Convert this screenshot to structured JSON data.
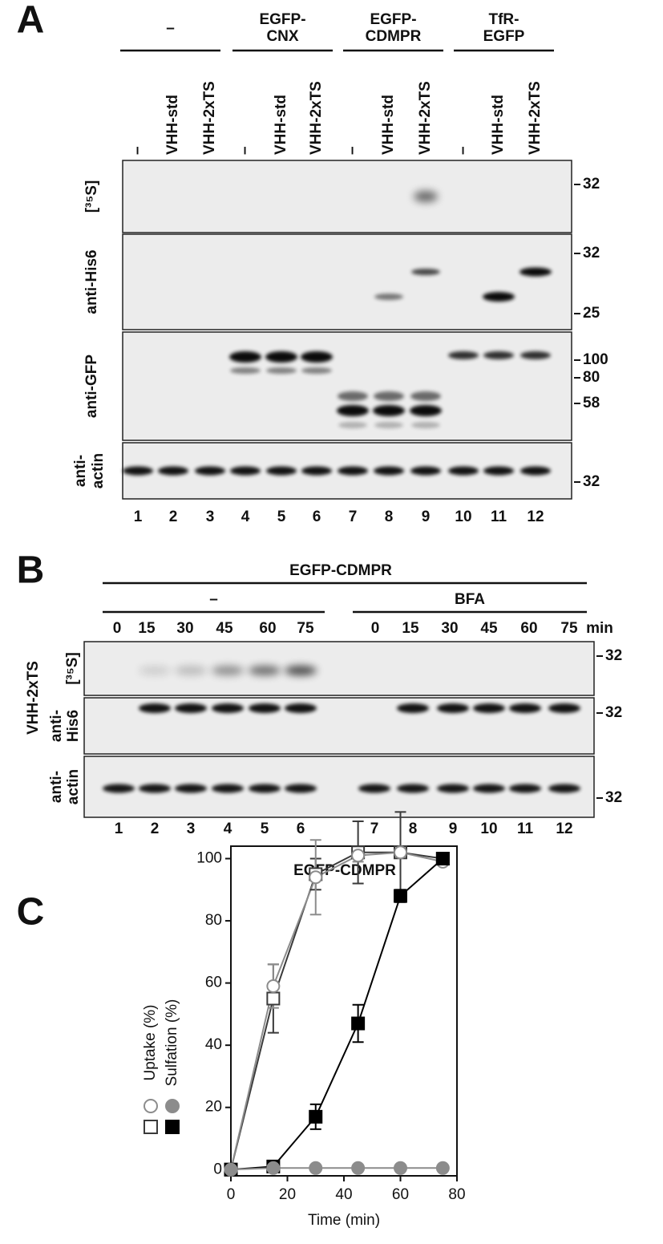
{
  "panel_a": {
    "letter": "A",
    "groups": [
      [
        "–"
      ],
      [
        "EGFP-",
        "CNX"
      ],
      [
        "EGFP-",
        "CDMPR"
      ],
      [
        "TfR-",
        "EGFP"
      ]
    ],
    "lanes": [
      "–",
      "VHH-std",
      "VHH-2xTS",
      "–",
      "VHH-std",
      "VHH-2xTS",
      "–",
      "VHH-std",
      "VHH-2xTS",
      "–",
      "VHH-std",
      "VHH-2xTS"
    ],
    "blots": [
      {
        "label": [
          "[³⁵S]"
        ],
        "markers": [
          "32"
        ]
      },
      {
        "label": [
          "anti-His6"
        ],
        "markers": [
          "32",
          "25"
        ]
      },
      {
        "label": [
          "anti-GFP"
        ],
        "markers": [
          "100",
          "80",
          "58"
        ]
      },
      {
        "label": [
          "anti-",
          "actin"
        ],
        "markers": [
          "32"
        ]
      }
    ],
    "lane_numbers": [
      1,
      2,
      3,
      4,
      5,
      6,
      7,
      8,
      9,
      10,
      11,
      12
    ]
  },
  "panel_b": {
    "letter": "B",
    "construct": "EGFP-CDMPR",
    "groups": [
      "–",
      "BFA"
    ],
    "times": [
      0,
      15,
      30,
      45,
      60,
      75,
      0,
      15,
      30,
      45,
      60,
      75
    ],
    "time_unit": "min",
    "side_label": "VHH-2xTS",
    "blots": [
      {
        "label": [
          "[³⁵S]"
        ],
        "markers": [
          "32"
        ]
      },
      {
        "label": [
          "anti-",
          "His6"
        ],
        "markers": [
          "32"
        ]
      },
      {
        "label": [
          "anti-",
          "actin"
        ],
        "markers": [
          "32"
        ]
      }
    ],
    "lane_numbers": [
      1,
      2,
      3,
      4,
      5,
      6,
      7,
      8,
      9,
      10,
      11,
      12
    ]
  },
  "panel_c_letter": "C",
  "chart_data": {
    "type": "line",
    "title": "EGFP-CDMPR",
    "x_label": "Time (min)",
    "y_labels": [
      "Uptake (%)",
      "Sulfation (%)"
    ],
    "x": [
      0,
      15,
      30,
      45,
      60,
      75
    ],
    "xlim": [
      0,
      80
    ],
    "xticks": [
      0,
      20,
      40,
      60,
      80
    ],
    "ylim": [
      -2,
      104
    ],
    "yticks": [
      0,
      20,
      40,
      60,
      80,
      100
    ],
    "series": [
      {
        "marker": "square",
        "filled": false,
        "color": "#3a3a3a",
        "values": [
          0,
          55,
          95,
          102,
          102,
          100
        ],
        "errors": [
          0,
          11,
          5,
          10,
          13,
          0
        ]
      },
      {
        "marker": "circle",
        "filled": false,
        "color": "#8c8c8c",
        "values": [
          0,
          59,
          94,
          101,
          102,
          99
        ],
        "errors": [
          0,
          7,
          12,
          2,
          1,
          1
        ]
      },
      {
        "marker": "square",
        "filled": true,
        "color": "#000000",
        "values": [
          0,
          1,
          17,
          47,
          88,
          100
        ],
        "errors": [
          0,
          1,
          4,
          6,
          2,
          1
        ]
      },
      {
        "marker": "circle",
        "filled": true,
        "color": "#8c8c8c",
        "values": [
          0,
          0.5,
          0.5,
          0.5,
          0.5,
          0.5
        ],
        "errors": [
          0,
          0,
          0,
          0,
          0,
          0
        ]
      }
    ]
  }
}
